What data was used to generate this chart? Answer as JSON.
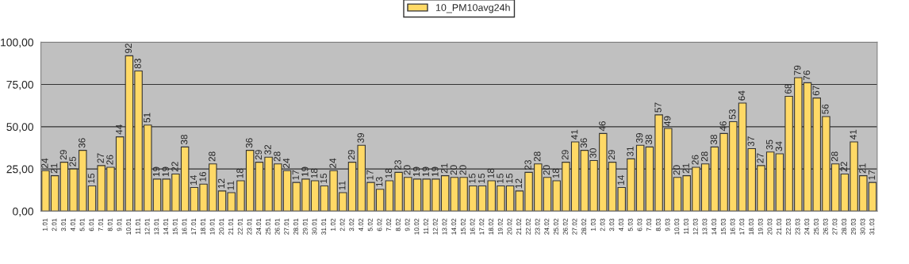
{
  "chart_data": {
    "type": "bar",
    "categories": [
      "1.01",
      "2.01",
      "3.01",
      "4.01",
      "5.01",
      "6.01",
      "7.01",
      "8.01",
      "9.01",
      "10.01",
      "11.01",
      "12.01",
      "13.01",
      "14.01",
      "15.01",
      "16.01",
      "17.01",
      "18.01",
      "19.01",
      "20.01",
      "21.01",
      "22.01",
      "23.01",
      "24.01",
      "25.01",
      "26.01",
      "27.01",
      "28.01",
      "29.01",
      "30.01",
      "31.01",
      "1.02",
      "2.02",
      "3.02",
      "4.02",
      "5.02",
      "6.02",
      "7.02",
      "8.02",
      "9.02",
      "10.02",
      "11.02",
      "12.02",
      "13.02",
      "14.02",
      "15.02",
      "16.02",
      "17.02",
      "18.02",
      "19.02",
      "20.02",
      "21.02",
      "22.02",
      "23.02",
      "24.02",
      "25.02",
      "26.02",
      "27.02",
      "28.02",
      "1.03",
      "2.03",
      "3.03",
      "4.03",
      "5.03",
      "6.03",
      "7.03",
      "8.03",
      "9.03",
      "10.03",
      "11.03",
      "12.03",
      "13.03",
      "14.03",
      "15.03",
      "16.03",
      "17.03",
      "18.03",
      "19.03",
      "20.03",
      "21.03",
      "22.03",
      "23.03",
      "24.03",
      "25.03",
      "26.03",
      "27.03",
      "28.03",
      "29.03",
      "30.03",
      "31.03"
    ],
    "series": [
      {
        "name": "10_PM10avg24h",
        "color": "#ffd966",
        "values": [
          24,
          21,
          29,
          25,
          36,
          15,
          27,
          26,
          44,
          92,
          83,
          51,
          19,
          19,
          22,
          38,
          14,
          16,
          28,
          12,
          11,
          18,
          36,
          29,
          32,
          28,
          24,
          17,
          19,
          18,
          15,
          24,
          11,
          29,
          39,
          17,
          13,
          18,
          23,
          20,
          19,
          19,
          19,
          21,
          20,
          20,
          15,
          15,
          18,
          15,
          15,
          12,
          23,
          28,
          20,
          18,
          29,
          41,
          36,
          30,
          46,
          29,
          14,
          31,
          39,
          38,
          57,
          49,
          20,
          21,
          26,
          28,
          38,
          46,
          53,
          64,
          37,
          27,
          35,
          34,
          68,
          79,
          76,
          67,
          56,
          28,
          22,
          41,
          21,
          17
        ]
      }
    ],
    "ylim": [
      0,
      100
    ],
    "yticks": [
      {
        "value": 0,
        "label": "0,00"
      },
      {
        "value": 25,
        "label": "25,00"
      },
      {
        "value": 50,
        "label": "50,00"
      },
      {
        "value": 75,
        "label": "75,00"
      },
      {
        "value": 100,
        "label": "100,00"
      }
    ],
    "grid": "y",
    "legend": "top",
    "data_labels": true
  }
}
